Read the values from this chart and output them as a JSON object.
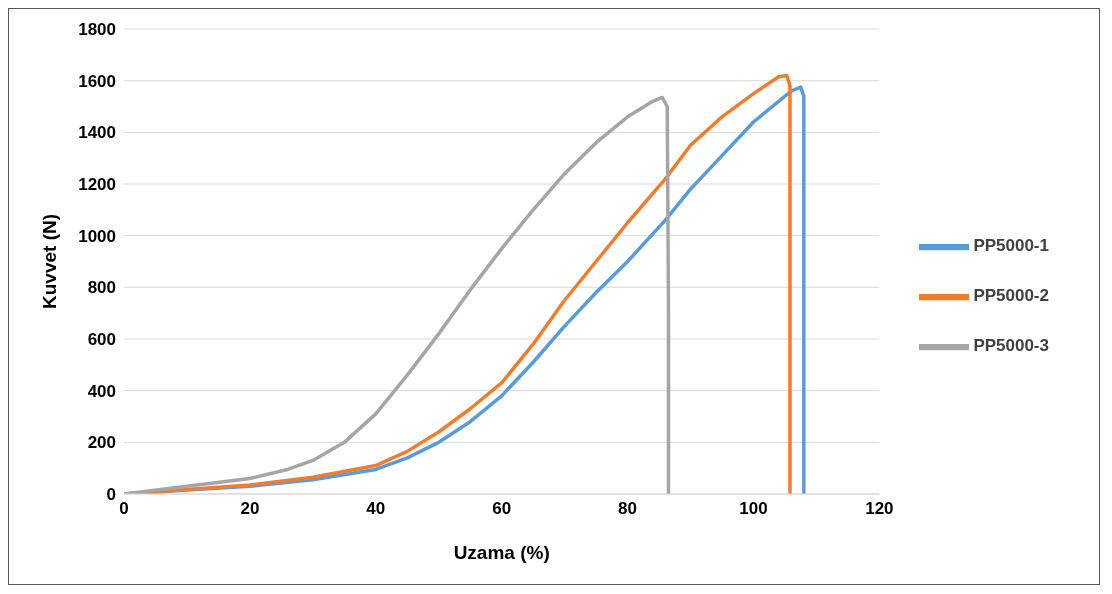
{
  "chart_data": {
    "type": "line",
    "xlabel": "Uzama (%)",
    "ylabel": "Kuvvet (N)",
    "xlim": [
      0,
      120
    ],
    "xticks": [
      0,
      20,
      40,
      60,
      80,
      100,
      120
    ],
    "ylim": [
      0,
      1800
    ],
    "yticks": [
      0,
      200,
      400,
      600,
      800,
      1000,
      1200,
      1400,
      1600,
      1800
    ],
    "grid": "y",
    "legend": "right",
    "marker": "none",
    "line_style": "solid",
    "series": [
      {
        "name": "PP5000-1",
        "color": "#5b9bd5",
        "x": [
          0,
          10,
          20,
          30,
          40,
          45,
          50,
          55,
          60,
          65,
          70,
          75,
          80,
          86,
          90,
          95,
          100,
          104,
          106,
          107.5,
          108,
          108,
          108
        ],
        "values": [
          0,
          15,
          30,
          55,
          95,
          140,
          200,
          280,
          380,
          510,
          650,
          780,
          900,
          1060,
          1180,
          1310,
          1440,
          1520,
          1560,
          1575,
          1540,
          800,
          0
        ]
      },
      {
        "name": "PP5000-2",
        "color": "#ed7d31",
        "x": [
          0,
          10,
          20,
          30,
          40,
          45,
          50,
          55,
          60,
          65,
          70,
          75,
          80,
          86,
          90,
          95,
          100,
          104,
          105.3,
          105.8,
          105.8,
          105.8
        ],
        "values": [
          0,
          17,
          35,
          65,
          110,
          165,
          240,
          330,
          430,
          580,
          750,
          900,
          1050,
          1220,
          1350,
          1460,
          1550,
          1615,
          1620,
          1580,
          800,
          0
        ]
      },
      {
        "name": "PP5000-3",
        "color": "#a5a5a5",
        "x": [
          0,
          10,
          20,
          26,
          30,
          35,
          40,
          45,
          50,
          55,
          60,
          65,
          70,
          75,
          80,
          84,
          85.5,
          86.3,
          86.5,
          86.5
        ],
        "values": [
          0,
          30,
          60,
          95,
          130,
          200,
          310,
          460,
          620,
          790,
          950,
          1100,
          1240,
          1360,
          1460,
          1520,
          1535,
          1500,
          700,
          0
        ]
      }
    ]
  }
}
